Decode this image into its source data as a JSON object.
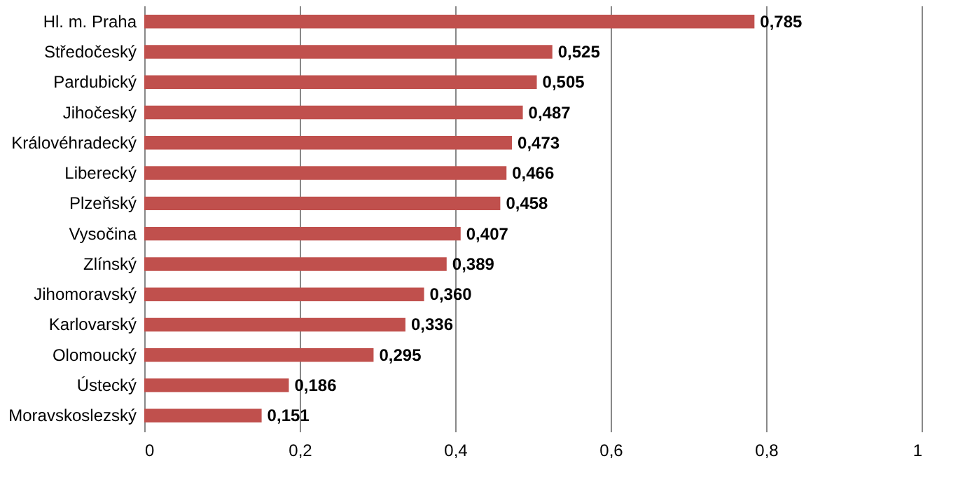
{
  "chart_data": {
    "type": "bar",
    "orientation": "horizontal",
    "categories": [
      "Hl. m. Praha",
      "Středočeský",
      "Pardubický",
      "Jihočeský",
      "Královéhradecký",
      "Liberecký",
      "Plzeňský",
      "Vysočina",
      "Zlínský",
      "Jihomoravský",
      "Karlovarský",
      "Olomoucký",
      "Ústecký",
      "Moravskoslezský"
    ],
    "values": [
      0.785,
      0.525,
      0.505,
      0.487,
      0.473,
      0.466,
      0.458,
      0.407,
      0.389,
      0.36,
      0.336,
      0.295,
      0.186,
      0.151
    ],
    "value_labels": [
      "0,785",
      "0,525",
      "0,505",
      "0,487",
      "0,473",
      "0,466",
      "0,458",
      "0,407",
      "0,389",
      "0,360",
      "0,336",
      "0,295",
      "0,186",
      "0,151"
    ],
    "color": "#c0504d",
    "xlim": [
      0,
      1
    ],
    "xticks": [
      0,
      {
        "value": 0.2,
        "label": "0,2"
      },
      {
        "value": 0.4,
        "label": "0,4"
      },
      {
        "value": 0.6,
        "label": "0,6"
      },
      {
        "value": 0.8,
        "label": "0,8"
      },
      1
    ],
    "grid": "x"
  }
}
